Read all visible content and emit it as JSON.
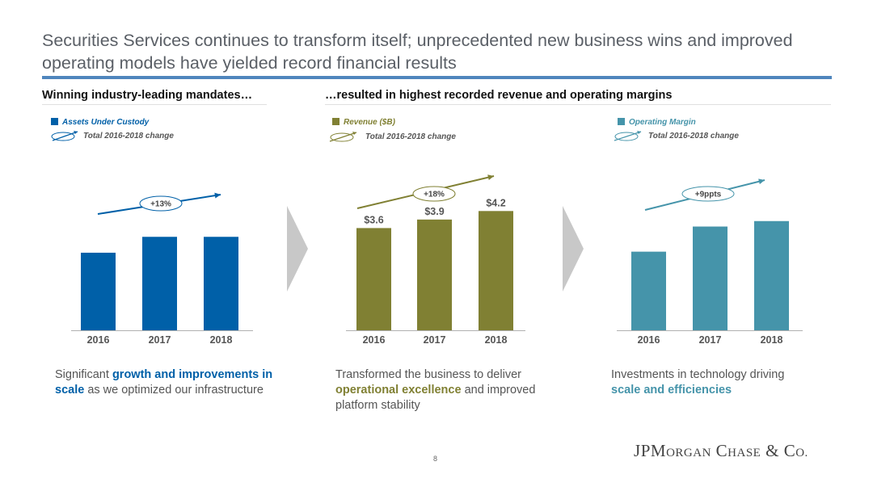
{
  "title": "Securities Services continues to transform itself; unprecedented new business wins and improved operating models have yielded record financial results",
  "subheads": {
    "left": "Winning industry-leading mandates…",
    "right": "…resulted in highest recorded revenue and operating margins"
  },
  "legend_change_label": "Total 2016-2018 change",
  "colors": {
    "auc": "#0060a8",
    "revenue": "#808033",
    "margin": "#4594aa",
    "axis": "#b0b0b0",
    "chevron": "#c8c8c8"
  },
  "chart_data": [
    {
      "type": "bar",
      "legend": "Assets Under Custody",
      "categories": [
        "2016",
        "2017",
        "2018"
      ],
      "values": [
        0.83,
        1.0,
        1.0
      ],
      "value_labels": [],
      "change": "+13%",
      "ylim": [
        0,
        1.08
      ],
      "color_key": "auc",
      "title": "",
      "xlabel": "",
      "ylabel": ""
    },
    {
      "type": "bar",
      "legend": "Revenue ($B)",
      "categories": [
        "2016",
        "2017",
        "2018"
      ],
      "values": [
        3.6,
        3.9,
        4.2
      ],
      "value_labels": [
        "$3.6",
        "$3.9",
        "$4.2"
      ],
      "change": "+18%",
      "ylim": [
        0,
        4.55
      ],
      "color_key": "revenue",
      "title": "",
      "xlabel": "",
      "ylabel": ""
    },
    {
      "type": "bar",
      "legend": "Operating Margin",
      "categories": [
        "2016",
        "2017",
        "2018"
      ],
      "values": [
        0.72,
        0.95,
        1.0
      ],
      "value_labels": [],
      "change": "+9ppts",
      "ylim": [
        0,
        1.05
      ],
      "color_key": "margin",
      "title": "",
      "xlabel": "",
      "ylabel": ""
    }
  ],
  "captions": {
    "left": {
      "pre": "Significant ",
      "highlight": "growth and improvements in scale",
      "post": " as we optimized our infrastructure"
    },
    "middle": {
      "pre": "Transformed the business to deliver ",
      "highlight": "operational excellence",
      "post": " and improved platform stability"
    },
    "right": {
      "pre": "Investments in technology driving ",
      "highlight": "scale and efficiencies",
      "post": ""
    }
  },
  "page_number": "8",
  "logo_text": "JPMorgan Chase & Co."
}
